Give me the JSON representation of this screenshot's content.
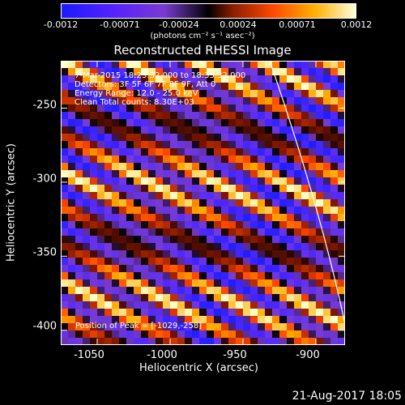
{
  "colorbar": {
    "ticks": [
      "-0.0012",
      "-0.00071",
      "-0.00024",
      "0.00024",
      "0.00071",
      "0.0012"
    ],
    "units": "(photons cm⁻² s⁻¹ asec⁻²)",
    "colors": [
      "#2020ff",
      "#5a20ff",
      "#7a3ad0",
      "#000000",
      "#a03000",
      "#ff5000",
      "#ffb000",
      "#ffffc0"
    ]
  },
  "annotations": {
    "time": "7-Mar-2015 18:23:32.000 to 18:33:32.000",
    "detectors": "Detectors: 3F 5F 6F 7F 8F 9F, Att 0",
    "energy": "Energy Range: 12.0 - 25.0 keV",
    "clean": "Clean    Total counts: 8.30E+03",
    "peak": "Position of Peak = [-1029,-258]"
  },
  "footer": {
    "date": "21-Aug-2017 18:05"
  },
  "chart_data": {
    "type": "heatmap",
    "title": "Reconstructed RHESSI Image",
    "xlabel": "Heliocentric X (arcsec)",
    "ylabel": "Heliocentric Y (arcsec)",
    "xlim": [
      -1075,
      -880
    ],
    "ylim": [
      -410,
      -218
    ],
    "x_ticks": [
      "-1050",
      "-1000",
      "-950",
      "-900"
    ],
    "y_ticks": [
      "-250",
      "-300",
      "-350",
      "-400"
    ],
    "x_tick_values": [
      -1050,
      -1000,
      -950,
      -900
    ],
    "y_tick_values": [
      -250,
      -300,
      -350,
      -400
    ],
    "colorbar_range": [
      -0.0012,
      0.0012
    ],
    "pattern": "diagonal stripes alternating positive (yellow) and negative (blue/purple)",
    "peak": [
      -1029,
      -258
    ]
  }
}
